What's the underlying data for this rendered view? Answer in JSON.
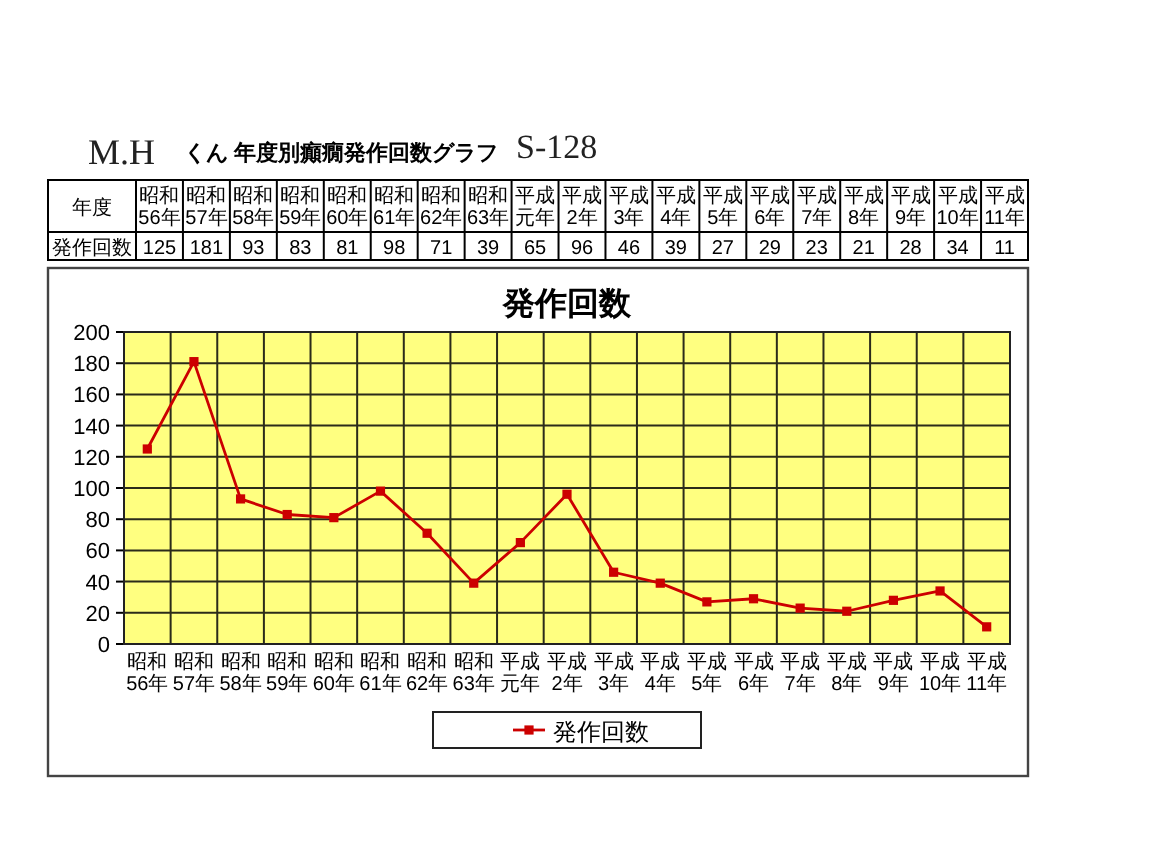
{
  "chart_data": {
    "type": "line",
    "title": "発作回数",
    "annotations": [
      "M.H",
      "くん 年度別癲癇発作回数グラフ",
      "S-128",
      "年度"
    ],
    "categories": [
      "昭和56年",
      "昭和57年",
      "昭和58年",
      "昭和59年",
      "昭和60年",
      "昭和61年",
      "昭和62年",
      "昭和63年",
      "平成元年",
      "平成2年",
      "平成3年",
      "平成4年",
      "平成5年",
      "平成6年",
      "平成7年",
      "平成8年",
      "平成9年",
      "平成10年",
      "平成11年"
    ],
    "series": [
      {
        "name": "発作回数",
        "color": "#cc0000",
        "values": [
          125,
          181,
          93,
          83,
          81,
          98,
          71,
          39,
          65,
          96,
          46,
          39,
          27,
          29,
          23,
          21,
          28,
          34,
          11
        ]
      }
    ],
    "ylim": [
      0,
      200
    ],
    "yticks": [
      0,
      20,
      40,
      60,
      80,
      100,
      120,
      140,
      160,
      180,
      200
    ],
    "grid": true,
    "legend": "bottom",
    "marker": "square",
    "line_style": "solid",
    "data_labels": true
  }
}
